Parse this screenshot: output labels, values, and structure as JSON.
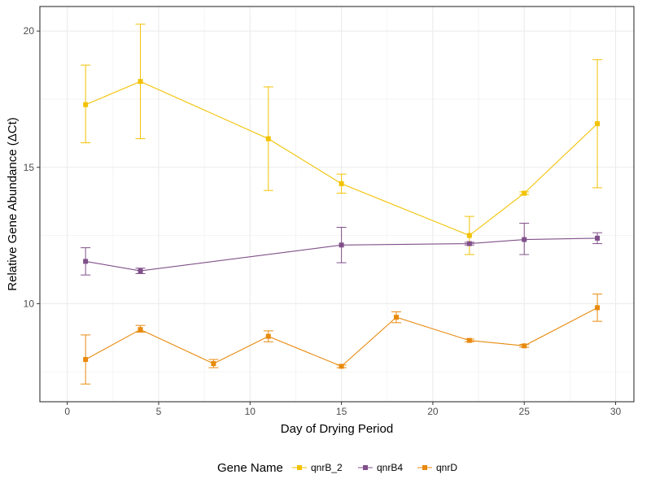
{
  "chart_data": {
    "type": "line",
    "xlabel": "Day of Drying Period",
    "ylabel": "Relative Gene Abundance (ΔCt)",
    "xlim": [
      -1.5,
      31
    ],
    "ylim": [
      6.4,
      20.9
    ],
    "xticks": [
      0,
      5,
      10,
      15,
      20,
      25,
      30
    ],
    "yticks": [
      10,
      15,
      20
    ],
    "grid": true,
    "legend": {
      "title": "Gene Name",
      "position": "bottom"
    },
    "series": [
      {
        "name": "qnrB_2",
        "color": "#F2C200",
        "points": [
          {
            "x": 1,
            "y": 17.3,
            "ymin": 15.9,
            "ymax": 18.75
          },
          {
            "x": 4,
            "y": 18.15,
            "ymin": 16.05,
            "ymax": 20.25
          },
          {
            "x": 11,
            "y": 16.05,
            "ymin": 14.15,
            "ymax": 17.95
          },
          {
            "x": 15,
            "y": 14.4,
            "ymin": 14.05,
            "ymax": 14.75
          },
          {
            "x": 22,
            "y": 12.5,
            "ymin": 11.8,
            "ymax": 13.2
          },
          {
            "x": 25,
            "y": 14.05,
            "ymin": 14.0,
            "ymax": 14.1
          },
          {
            "x": 29,
            "y": 16.6,
            "ymin": 14.25,
            "ymax": 18.95
          }
        ]
      },
      {
        "name": "qnrB4",
        "color": "#80508A",
        "points": [
          {
            "x": 1,
            "y": 11.55,
            "ymin": 11.05,
            "ymax": 12.05
          },
          {
            "x": 4,
            "y": 11.2,
            "ymin": 11.1,
            "ymax": 11.3
          },
          {
            "x": 15,
            "y": 12.15,
            "ymin": 11.5,
            "ymax": 12.8
          },
          {
            "x": 22,
            "y": 12.2,
            "ymin": 12.15,
            "ymax": 12.25
          },
          {
            "x": 25,
            "y": 12.35,
            "ymin": 11.8,
            "ymax": 12.95
          },
          {
            "x": 29,
            "y": 12.4,
            "ymin": 12.2,
            "ymax": 12.6
          }
        ]
      },
      {
        "name": "qnrD",
        "color": "#E88A0E",
        "points": [
          {
            "x": 1,
            "y": 7.95,
            "ymin": 7.05,
            "ymax": 8.85
          },
          {
            "x": 4,
            "y": 9.05,
            "ymin": 8.95,
            "ymax": 9.2
          },
          {
            "x": 8,
            "y": 7.8,
            "ymin": 7.65,
            "ymax": 7.95
          },
          {
            "x": 11,
            "y": 8.8,
            "ymin": 8.6,
            "ymax": 9.0
          },
          {
            "x": 15,
            "y": 7.7,
            "ymin": 7.65,
            "ymax": 7.75
          },
          {
            "x": 18,
            "y": 9.5,
            "ymin": 9.3,
            "ymax": 9.7
          },
          {
            "x": 22,
            "y": 8.65,
            "ymin": 8.6,
            "ymax": 8.7
          },
          {
            "x": 25,
            "y": 8.45,
            "ymin": 8.4,
            "ymax": 8.5
          },
          {
            "x": 29,
            "y": 9.85,
            "ymin": 9.35,
            "ymax": 10.35
          }
        ]
      }
    ]
  }
}
